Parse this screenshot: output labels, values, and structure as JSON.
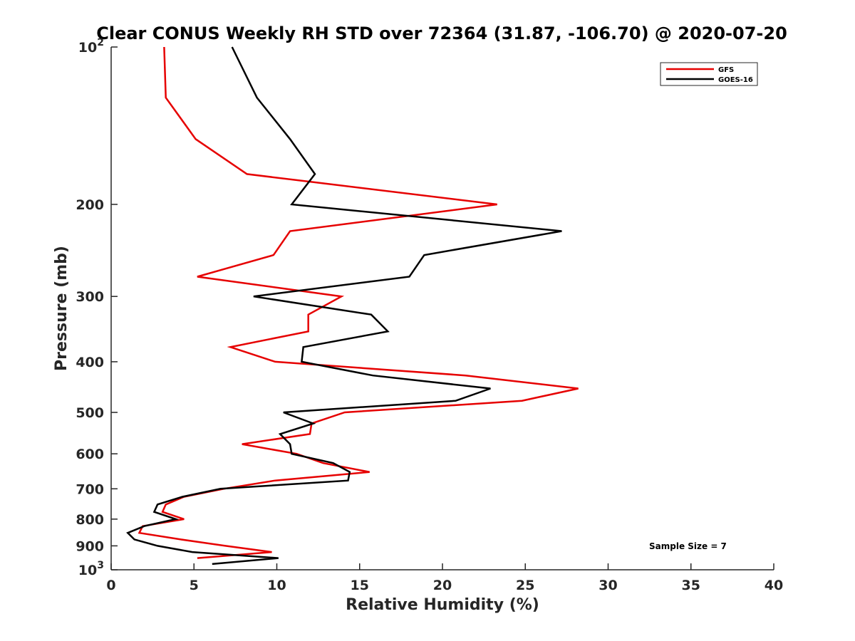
{
  "chart_data": {
    "type": "line",
    "title": "Clear CONUS Weekly RH STD over 72364 (31.87, -106.70) @ 2020-07-20",
    "xlabel": "Relative Humidity (%)",
    "ylabel": "Pressure (mb)",
    "xlim": [
      0,
      40
    ],
    "ylim": [
      100,
      1000
    ],
    "y_scale": "log",
    "y_reversed": true,
    "x_ticks": [
      0,
      5,
      10,
      15,
      20,
      25,
      30,
      35,
      40
    ],
    "x_tick_labels": [
      "0",
      "5",
      "10",
      "15",
      "20",
      "25",
      "30",
      "35",
      "40"
    ],
    "y_ticks": [
      100,
      200,
      300,
      400,
      500,
      600,
      700,
      800,
      900,
      1000
    ],
    "y_tick_labels": [
      {
        "base": "10",
        "exp": "2"
      },
      {
        "base": "200",
        "exp": ""
      },
      {
        "base": "300",
        "exp": ""
      },
      {
        "base": "400",
        "exp": ""
      },
      {
        "base": "500",
        "exp": ""
      },
      {
        "base": "600",
        "exp": ""
      },
      {
        "base": "700",
        "exp": ""
      },
      {
        "base": "800",
        "exp": ""
      },
      {
        "base": "900",
        "exp": ""
      },
      {
        "base": "10",
        "exp": "3"
      }
    ],
    "grid": false,
    "legend_position": "top-right",
    "annotation": "Sample Size = 7",
    "series": [
      {
        "name": "GFS",
        "color": "#e60000",
        "points": [
          [
            3.2,
            100
          ],
          [
            3.3,
            125
          ],
          [
            5.1,
            150
          ],
          [
            8.2,
            175
          ],
          [
            23.3,
            200
          ],
          [
            10.8,
            225
          ],
          [
            9.8,
            250
          ],
          [
            5.2,
            275
          ],
          [
            13.9,
            300
          ],
          [
            11.9,
            325
          ],
          [
            11.9,
            350
          ],
          [
            7.2,
            375
          ],
          [
            9.9,
            400
          ],
          [
            21.4,
            425
          ],
          [
            28.2,
            450
          ],
          [
            24.8,
            475
          ],
          [
            14.1,
            500
          ],
          [
            12.1,
            525
          ],
          [
            12.0,
            550
          ],
          [
            7.9,
            575
          ],
          [
            11.2,
            600
          ],
          [
            12.8,
            625
          ],
          [
            15.6,
            650
          ],
          [
            9.9,
            675
          ],
          [
            6.8,
            700
          ],
          [
            4.4,
            725
          ],
          [
            3.3,
            750
          ],
          [
            3.1,
            775
          ],
          [
            4.4,
            800
          ],
          [
            1.9,
            825
          ],
          [
            1.7,
            850
          ],
          [
            4.2,
            875
          ],
          [
            6.9,
            900
          ],
          [
            9.7,
            925
          ],
          [
            5.2,
            950
          ]
        ]
      },
      {
        "name": "GOES-16",
        "color": "#000000",
        "points": [
          [
            7.3,
            100
          ],
          [
            8.8,
            125
          ],
          [
            10.8,
            150
          ],
          [
            12.3,
            175
          ],
          [
            10.9,
            200
          ],
          [
            27.2,
            225
          ],
          [
            18.9,
            250
          ],
          [
            18.0,
            275
          ],
          [
            8.6,
            300
          ],
          [
            15.7,
            325
          ],
          [
            16.7,
            350
          ],
          [
            11.6,
            375
          ],
          [
            11.5,
            400
          ],
          [
            15.8,
            425
          ],
          [
            22.9,
            450
          ],
          [
            20.8,
            475
          ],
          [
            10.4,
            500
          ],
          [
            12.2,
            525
          ],
          [
            10.2,
            550
          ],
          [
            10.8,
            575
          ],
          [
            10.9,
            600
          ],
          [
            13.4,
            625
          ],
          [
            14.4,
            650
          ],
          [
            14.3,
            675
          ],
          [
            6.6,
            700
          ],
          [
            4.3,
            725
          ],
          [
            2.8,
            750
          ],
          [
            2.6,
            775
          ],
          [
            3.9,
            800
          ],
          [
            2.0,
            825
          ],
          [
            1.0,
            850
          ],
          [
            1.4,
            875
          ],
          [
            2.8,
            900
          ],
          [
            4.9,
            925
          ],
          [
            10.1,
            950
          ],
          [
            6.1,
            975
          ]
        ]
      }
    ]
  }
}
